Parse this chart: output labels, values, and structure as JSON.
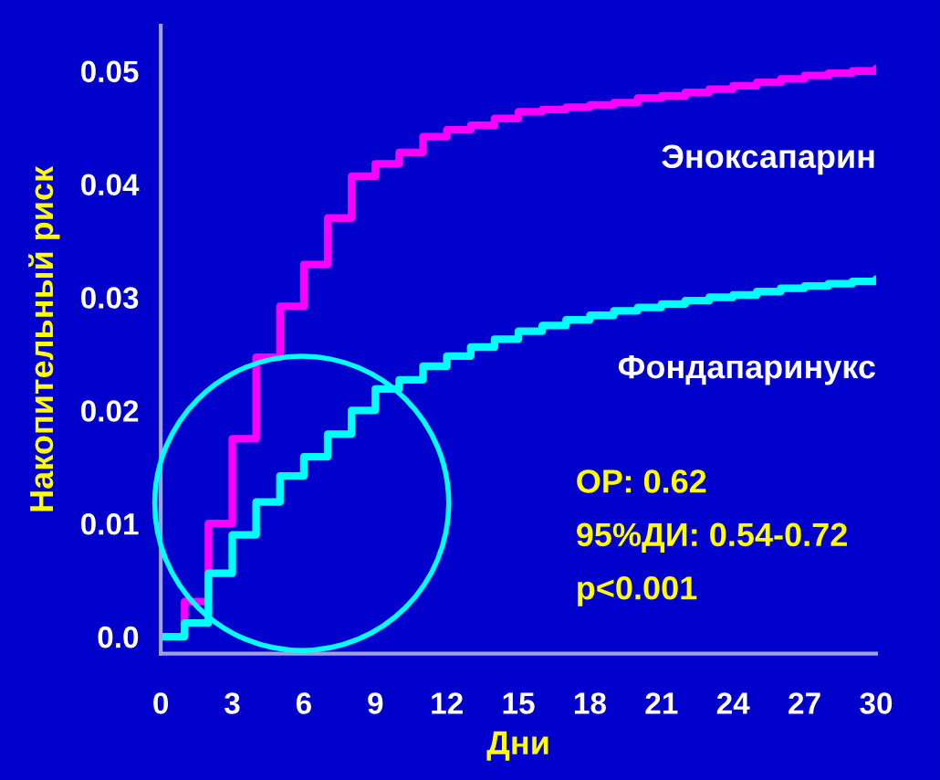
{
  "chart_data": {
    "type": "step",
    "xlabel": "Дни",
    "ylabel": "Накопительный риск",
    "x": [
      0,
      1,
      2,
      3,
      4,
      5,
      6,
      7,
      8,
      9,
      10,
      11,
      12,
      13,
      14,
      15,
      16,
      17,
      18,
      19,
      20,
      21,
      22,
      23,
      24,
      25,
      26,
      27,
      28,
      29,
      30
    ],
    "series": [
      {
        "name": "Эноксапарин",
        "color": "#ff00ff",
        "values": [
          0,
          0.0031,
          0.01,
          0.0175,
          0.0247,
          0.0292,
          0.0329,
          0.037,
          0.0407,
          0.0418,
          0.0428,
          0.0442,
          0.0448,
          0.0452,
          0.0458,
          0.0464,
          0.0466,
          0.0468,
          0.047,
          0.0472,
          0.0476,
          0.0478,
          0.0481,
          0.0484,
          0.0487,
          0.049,
          0.0493,
          0.0496,
          0.0498,
          0.05,
          0.0502
        ]
      },
      {
        "name": "Фондапаринукс",
        "color": "#00ffff",
        "values": [
          0,
          0.0012,
          0.0056,
          0.009,
          0.0119,
          0.0142,
          0.0159,
          0.0179,
          0.02,
          0.0219,
          0.0227,
          0.0239,
          0.0248,
          0.0256,
          0.0263,
          0.027,
          0.0275,
          0.028,
          0.0284,
          0.0288,
          0.0291,
          0.0294,
          0.0297,
          0.03,
          0.0302,
          0.0305,
          0.0308,
          0.031,
          0.0312,
          0.0314,
          0.0316
        ]
      }
    ],
    "xlim": [
      0,
      30
    ],
    "xticks": [
      0,
      3,
      6,
      9,
      12,
      15,
      18,
      21,
      24,
      27,
      30
    ],
    "ylim": [
      -0.0015,
      0.054
    ],
    "yticks": [
      {
        "value": 0,
        "label": "0.0"
      },
      0.01,
      0.02,
      0.03,
      0.04,
      0.05
    ],
    "annotations": [
      "ОР: 0.62",
      "95%ДИ: 0.54-0.72",
      "p<0.001"
    ]
  }
}
